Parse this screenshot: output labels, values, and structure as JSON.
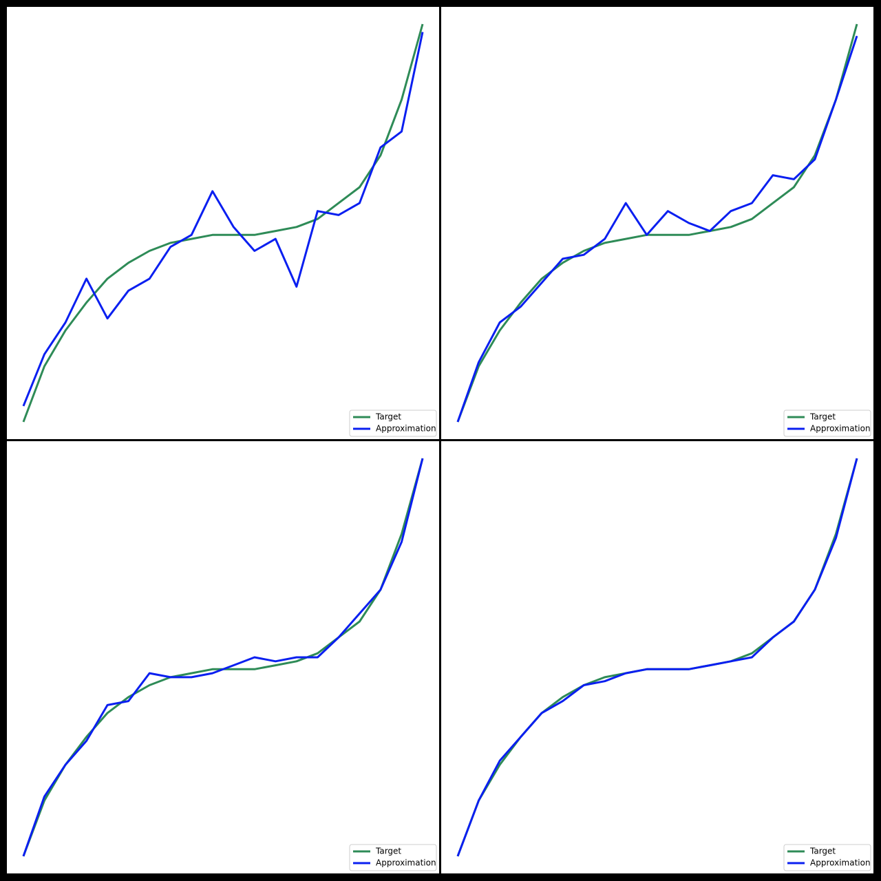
{
  "chart_data": [
    {
      "type": "line",
      "legend": "lower right",
      "series": [
        {
          "name": "Target",
          "color": "#2e8b57",
          "values": [
            1,
            15,
            24,
            31,
            37,
            41,
            44,
            46,
            47,
            48,
            48,
            48,
            49,
            50,
            52,
            56,
            60,
            68,
            82,
            101
          ]
        },
        {
          "name": "Approximation",
          "color": "#0a1ff0",
          "values": [
            5,
            18,
            26,
            37,
            27,
            34,
            37,
            45,
            48,
            59,
            50,
            44,
            47,
            35,
            54,
            53,
            56,
            70,
            74,
            99
          ]
        }
      ]
    },
    {
      "type": "line",
      "legend": "lower right",
      "series": [
        {
          "name": "Target",
          "color": "#2e8b57",
          "values": [
            1,
            15,
            24,
            31,
            37,
            41,
            44,
            46,
            47,
            48,
            48,
            48,
            49,
            50,
            52,
            56,
            60,
            68,
            82,
            101
          ]
        },
        {
          "name": "Approximation",
          "color": "#0a1ff0",
          "values": [
            1,
            16,
            26,
            30,
            36,
            42,
            43,
            47,
            56,
            48,
            54,
            51,
            49,
            54,
            56,
            63,
            62,
            67,
            82,
            98
          ]
        }
      ]
    },
    {
      "type": "line",
      "legend": "lower right",
      "series": [
        {
          "name": "Target",
          "color": "#2e8b57",
          "values": [
            1,
            15,
            24,
            31,
            37,
            41,
            44,
            46,
            47,
            48,
            48,
            48,
            49,
            50,
            52,
            56,
            60,
            68,
            82,
            101
          ]
        },
        {
          "name": "Approximation",
          "color": "#0a1ff0",
          "values": [
            1,
            16,
            24,
            30,
            39,
            40,
            47,
            46,
            46,
            47,
            49,
            51,
            50,
            51,
            51,
            56,
            62,
            68,
            80,
            101
          ]
        }
      ]
    },
    {
      "type": "line",
      "legend": "lower right",
      "series": [
        {
          "name": "Target",
          "color": "#2e8b57",
          "values": [
            1,
            15,
            24,
            31,
            37,
            41,
            44,
            46,
            47,
            48,
            48,
            48,
            49,
            50,
            52,
            56,
            60,
            68,
            82,
            101
          ]
        },
        {
          "name": "Approximation",
          "color": "#0a1ff0",
          "values": [
            1,
            15,
            25,
            31,
            37,
            40,
            44,
            45,
            47,
            48,
            48,
            48,
            49,
            50,
            51,
            56,
            60,
            68,
            81,
            101
          ]
        }
      ]
    }
  ]
}
